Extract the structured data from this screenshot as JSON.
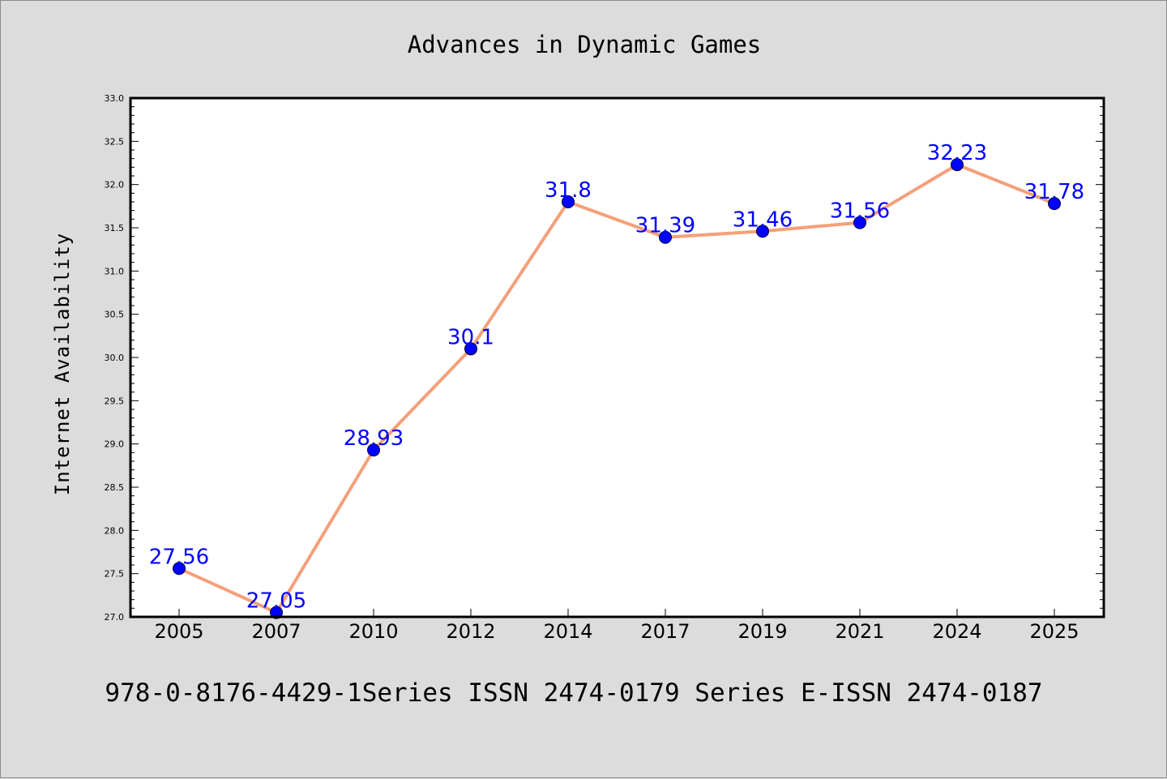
{
  "chart_data": {
    "type": "line",
    "title": "Advances in Dynamic Games",
    "xlabel": "",
    "ylabel": "Internet Availability",
    "categories": [
      "2005",
      "2007",
      "2010",
      "2012",
      "2014",
      "2017",
      "2019",
      "2021",
      "2024",
      "2025"
    ],
    "series": [
      {
        "values": [
          27.56,
          27.05,
          28.93,
          30.1,
          31.8,
          31.39,
          31.46,
          31.56,
          32.23,
          31.78
        ],
        "line_color": "#f4a07a",
        "marker_color": "#0000ff"
      }
    ],
    "ylim": [
      27.0,
      33.0
    ],
    "yticks": [
      "27.0",
      "27.5",
      "28.0",
      "28.5",
      "29.0",
      "29.5",
      "30.0",
      "30.5",
      "31.0",
      "31.5",
      "32.0",
      "32.5",
      "33.0"
    ],
    "data_labels": [
      "27.56",
      "27.05",
      "28.93",
      "30.1",
      "31.8",
      "31.39",
      "31.46",
      "31.56",
      "32.23",
      "31.78"
    ],
    "grid": false,
    "legend": "none"
  },
  "footer": {
    "text": "978-0-8176-4429-1Series ISSN 2474-0179 Series E-ISSN 2474-0187"
  }
}
